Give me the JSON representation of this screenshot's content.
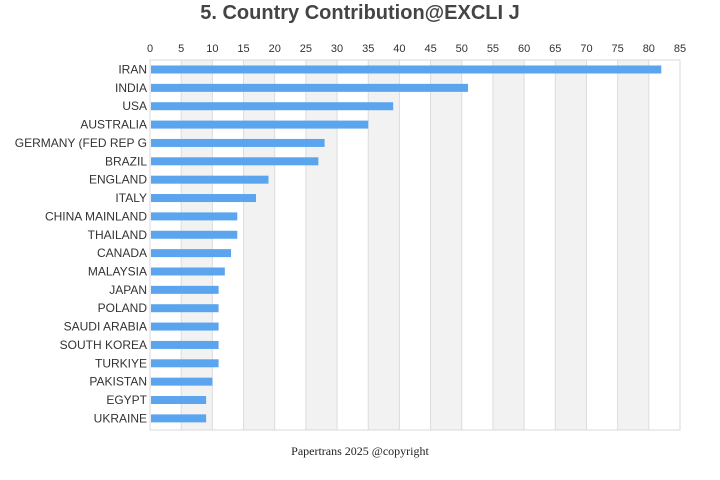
{
  "chart_data": {
    "type": "bar",
    "orientation": "horizontal",
    "title": "5. Country Contribution@EXCLI J",
    "categories": [
      "IRAN",
      "INDIA",
      "USA",
      "AUSTRALIA",
      "GERMANY (FED REP G",
      "BRAZIL",
      "ENGLAND",
      "ITALY",
      "CHINA MAINLAND",
      "THAILAND",
      "CANADA",
      "MALAYSIA",
      "JAPAN",
      "POLAND",
      "SAUDI ARABIA",
      "SOUTH KOREA",
      "TURKIYE",
      "PAKISTAN",
      "EGYPT",
      "UKRAINE"
    ],
    "values": [
      82,
      51,
      39,
      35,
      28,
      27,
      19,
      17,
      14,
      14,
      13,
      12,
      11,
      11,
      11,
      11,
      11,
      10,
      9,
      9
    ],
    "xlim": [
      0,
      85
    ],
    "xticks": [
      "0",
      "5",
      "10",
      "15",
      "20",
      "25",
      "30",
      "35",
      "40",
      "45",
      "50",
      "55",
      "60",
      "65",
      "70",
      "75",
      "80",
      "85"
    ],
    "xlabel": "",
    "ylabel": "",
    "axis_position": "top",
    "grid": "alternating vertical bands",
    "legend": "none",
    "colors": {
      "bar": "#5aa5ee",
      "band": "#f2f2f2",
      "grid": "#dcdcdc",
      "border": "#d9d9d9"
    }
  },
  "footer": "Papertrans 2025 @copyright"
}
